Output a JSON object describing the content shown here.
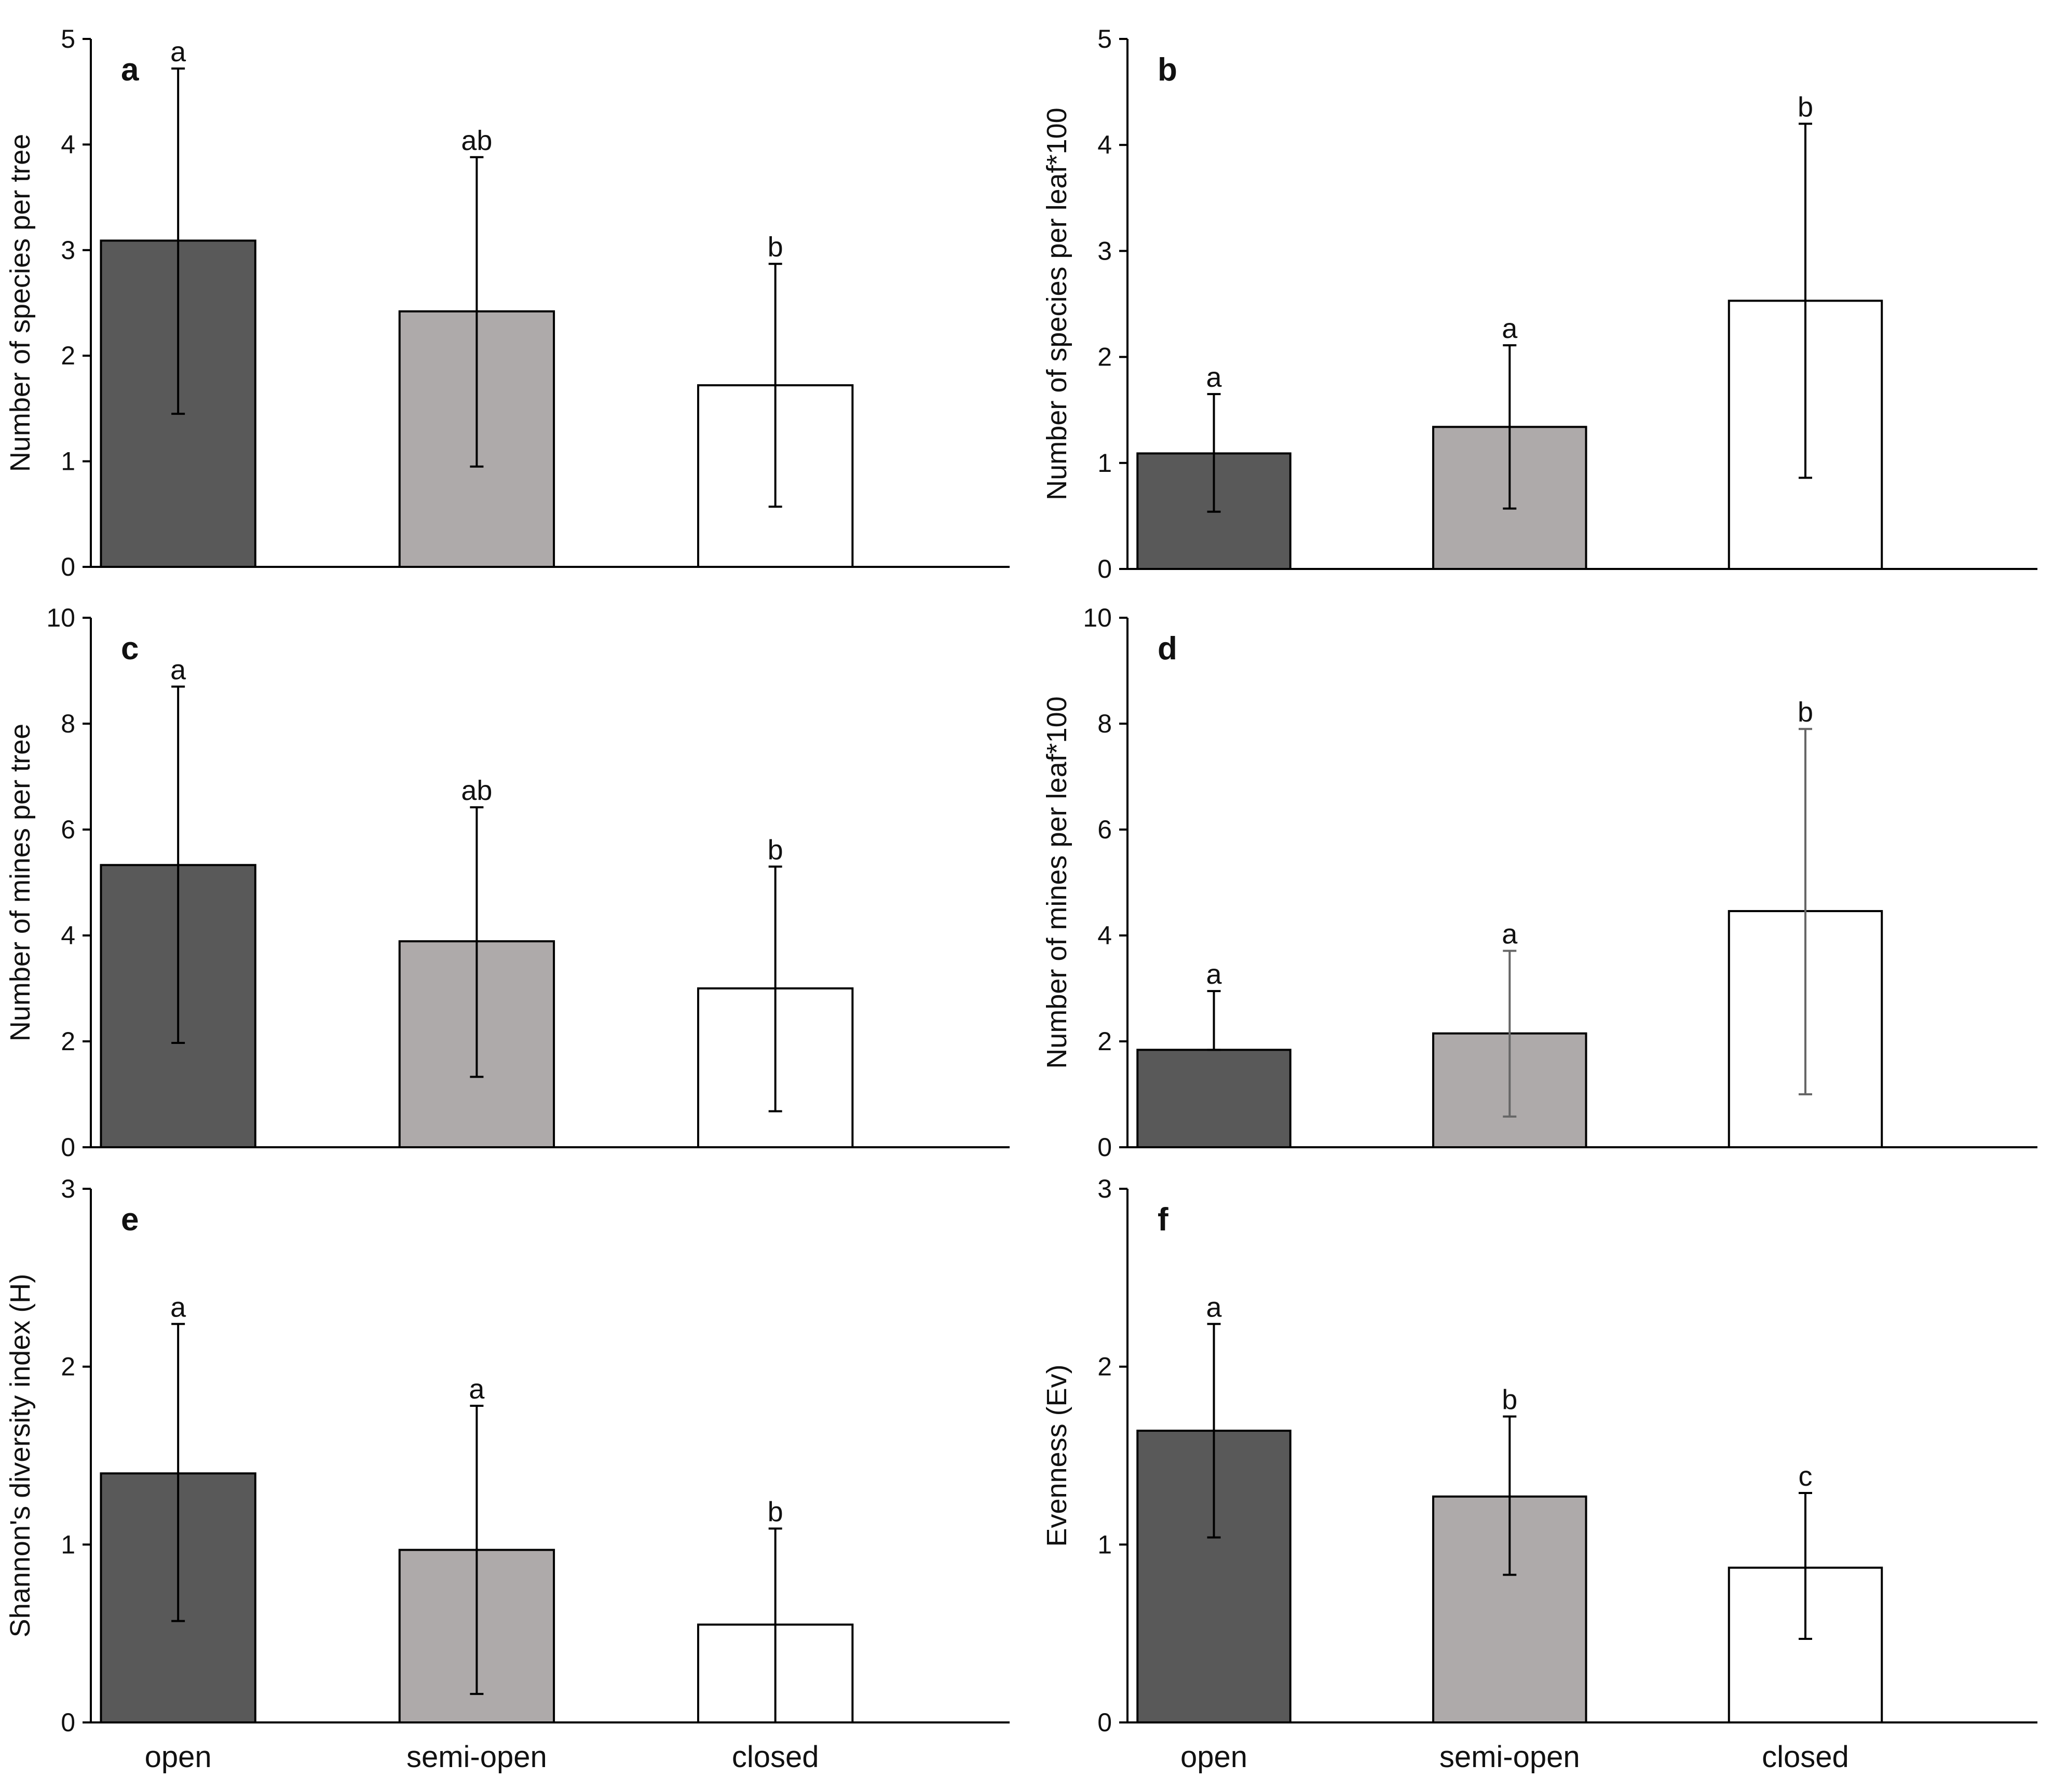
{
  "categories": [
    "open",
    "semi-open",
    "closed"
  ],
  "colors": {
    "open": "#595959",
    "semi-open": "#aeaaaa",
    "closed": "#ffffff"
  },
  "chart_data": [
    {
      "type": "bar",
      "panel": "a",
      "ylabel": "Number of species per tree",
      "ylim": [
        0,
        5
      ],
      "yticks": [
        "0",
        "1",
        "2",
        "3",
        "4",
        "5"
      ],
      "categories": [
        "open",
        "semi-open",
        "closed"
      ],
      "values": [
        3.09,
        2.42,
        1.72
      ],
      "error_low": [
        1.45,
        0.95,
        0.57
      ],
      "error_high": [
        4.72,
        3.88,
        2.87
      ],
      "significance": [
        "a",
        "ab",
        "b"
      ],
      "show_xlabels": false
    },
    {
      "type": "bar",
      "panel": "b",
      "ylabel": "Number of species per leaf*100",
      "ylim": [
        0,
        5
      ],
      "yticks": [
        "0",
        "1",
        "2",
        "3",
        "4",
        "5"
      ],
      "categories": [
        "open",
        "semi-open",
        "closed"
      ],
      "values": [
        1.09,
        1.34,
        2.53
      ],
      "error_low": [
        0.54,
        0.57,
        0.86
      ],
      "error_high": [
        1.65,
        2.11,
        4.2
      ],
      "significance": [
        "a",
        "a",
        "b"
      ],
      "show_xlabels": false
    },
    {
      "type": "bar",
      "panel": "c",
      "ylabel": "Number of mines per tree",
      "ylim": [
        0,
        10
      ],
      "yticks": [
        "0",
        "2",
        "4",
        "6",
        "8",
        "10"
      ],
      "categories": [
        "open",
        "semi-open",
        "closed"
      ],
      "values": [
        5.33,
        3.89,
        3.0
      ],
      "error_low": [
        1.97,
        1.33,
        0.68
      ],
      "error_high": [
        8.7,
        6.42,
        5.3
      ],
      "significance": [
        "a",
        "ab",
        "b"
      ],
      "show_xlabels": false
    },
    {
      "type": "bar",
      "panel": "d",
      "ylabel": "Number of mines per leaf*100",
      "ylim": [
        0,
        10
      ],
      "yticks": [
        "0",
        "2",
        "4",
        "6",
        "8",
        "10"
      ],
      "categories": [
        "open",
        "semi-open",
        "closed"
      ],
      "values": [
        1.84,
        2.15,
        4.46
      ],
      "error_low": [
        1.84,
        0.58,
        1.0
      ],
      "error_high": [
        2.95,
        3.71,
        7.9
      ],
      "significance": [
        "a",
        "a",
        "b"
      ],
      "show_xlabels": false
    },
    {
      "type": "bar",
      "panel": "e",
      "ylabel": "Shannon's diversity index (H)",
      "ylim": [
        0,
        3
      ],
      "yticks": [
        "0",
        "1",
        "2",
        "3"
      ],
      "categories": [
        "open",
        "semi-open",
        "closed"
      ],
      "values": [
        1.4,
        0.97,
        0.55
      ],
      "error_low": [
        0.57,
        0.16,
        0.0
      ],
      "error_high": [
        2.24,
        1.78,
        1.09
      ],
      "significance": [
        "a",
        "a",
        "b"
      ],
      "show_xlabels": true
    },
    {
      "type": "bar",
      "panel": "f",
      "ylabel": "Evenness (Ev)",
      "ylim": [
        0,
        3
      ],
      "yticks": [
        "0",
        "1",
        "2",
        "3"
      ],
      "categories": [
        "open",
        "semi-open",
        "closed"
      ],
      "values": [
        1.64,
        1.27,
        0.87
      ],
      "error_low": [
        1.04,
        0.83,
        0.47
      ],
      "error_high": [
        2.24,
        1.72,
        1.29
      ],
      "significance": [
        "a",
        "b",
        "c"
      ],
      "show_xlabels": true
    }
  ]
}
